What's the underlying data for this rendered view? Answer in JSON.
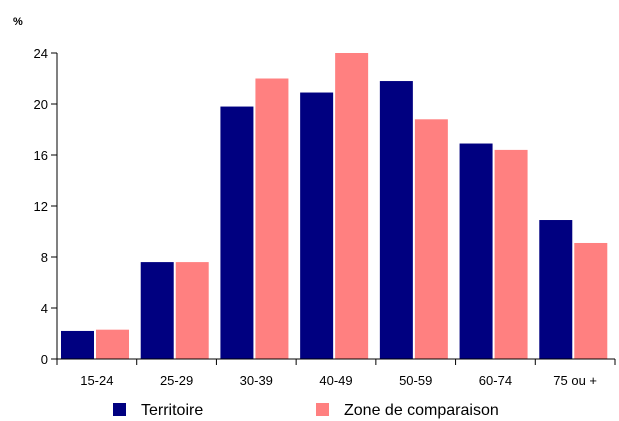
{
  "chart_data": {
    "type": "bar",
    "title": "",
    "xlabel": "",
    "ylabel": "%",
    "ylim": [
      0,
      24
    ],
    "yticks": [
      0,
      4,
      8,
      12,
      16,
      20,
      24
    ],
    "grid": false,
    "legend_position": "bottom",
    "categories": [
      "15-24",
      "25-29",
      "30-39",
      "40-49",
      "50-59",
      "60-74",
      "75 ou +"
    ],
    "series": [
      {
        "name": "Territoire",
        "color": "#000080",
        "values": [
          2.2,
          7.6,
          19.8,
          20.9,
          21.8,
          16.9,
          10.9
        ]
      },
      {
        "name": "Zone de comparaison",
        "color": "#ff8080",
        "values": [
          2.3,
          7.6,
          22.0,
          24.0,
          18.8,
          16.4,
          9.1
        ]
      }
    ]
  }
}
